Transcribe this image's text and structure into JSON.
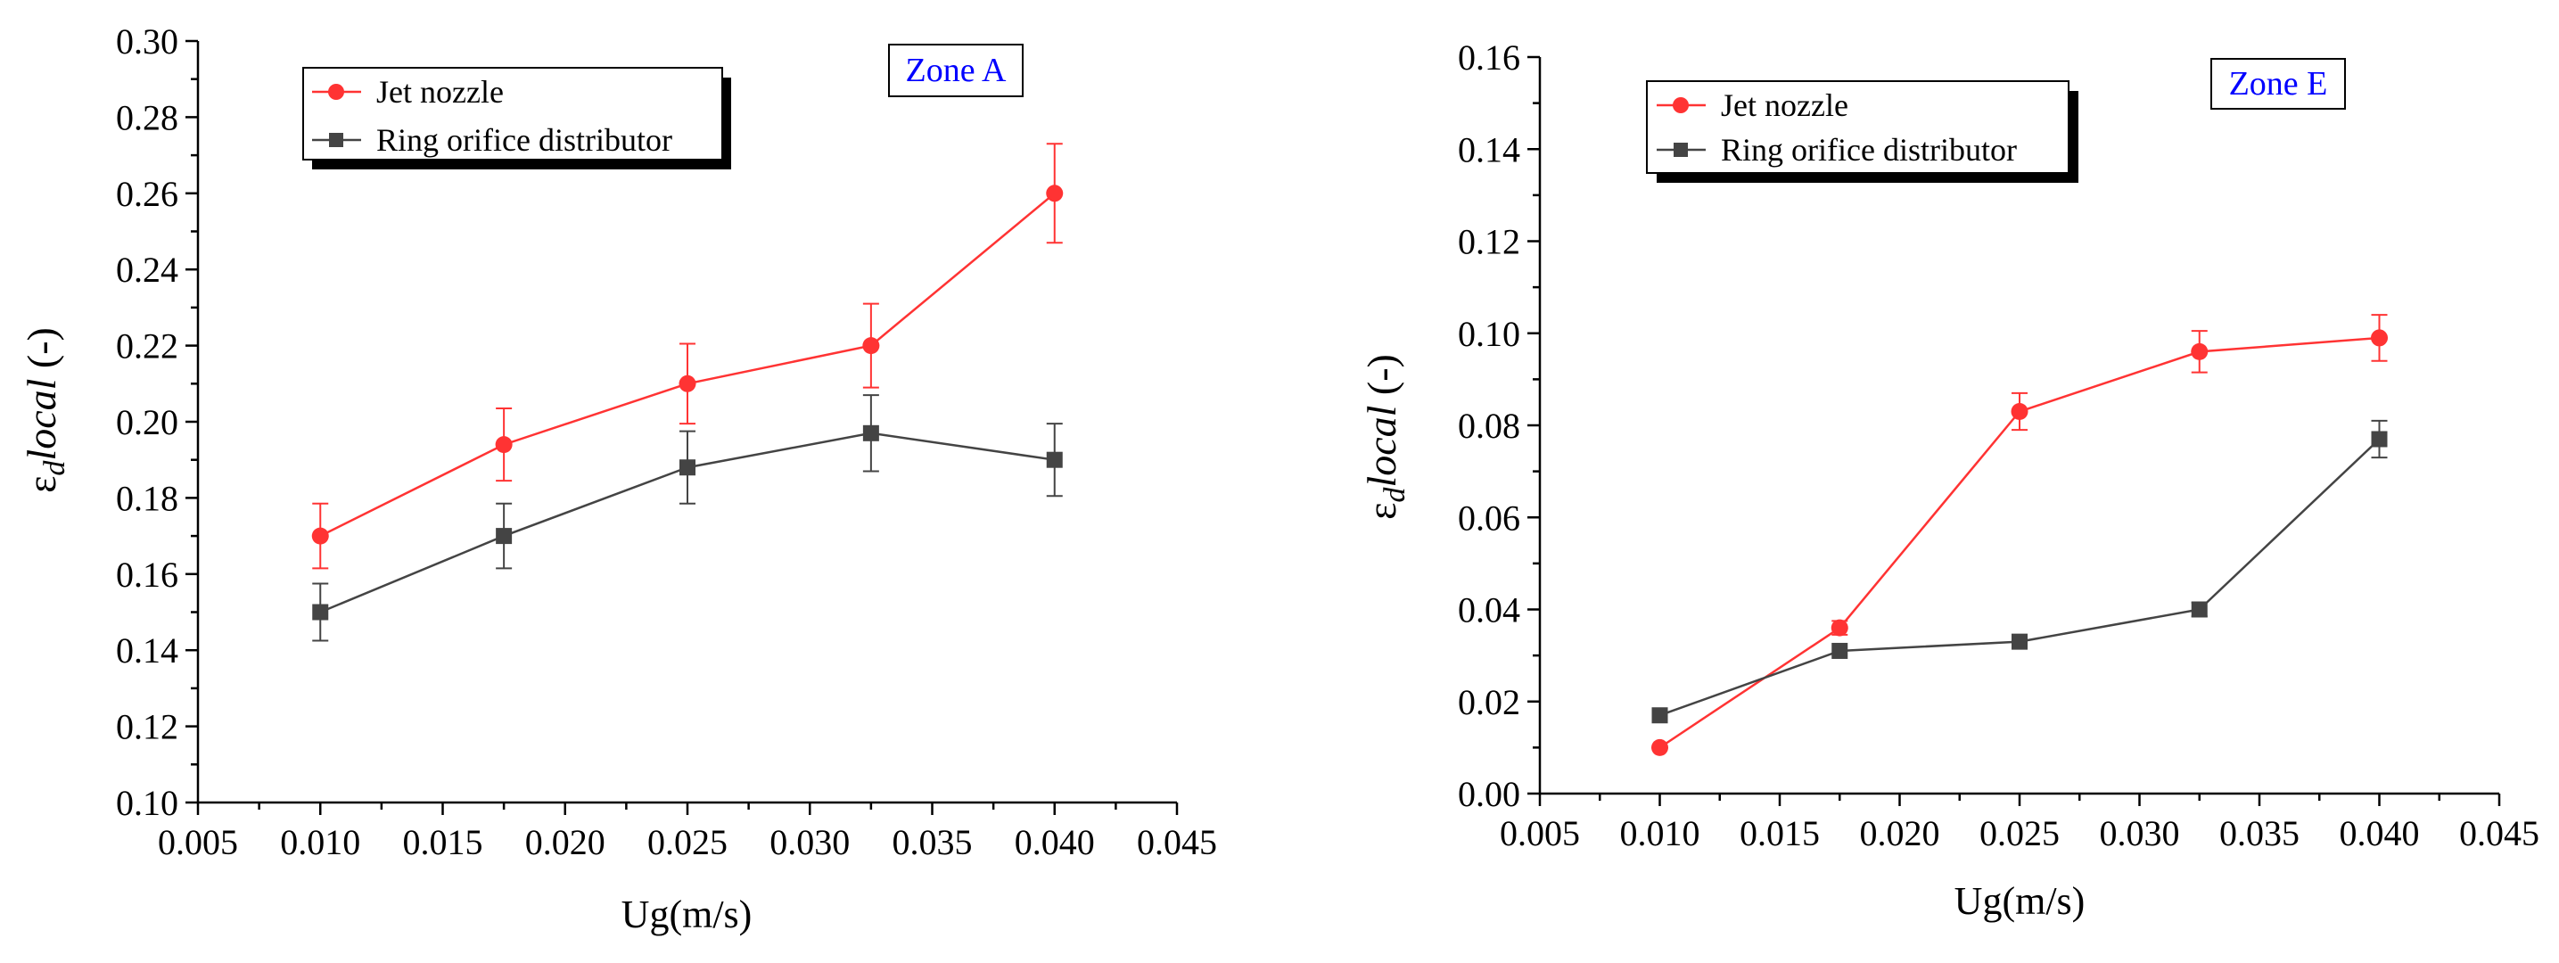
{
  "chart_data": [
    {
      "type": "line",
      "annotation": "Zone A",
      "xlabel": "Ug(m/s)",
      "ylabel": {
        "symbol": "ε",
        "subscript": "d",
        "rest": "local",
        "unit": " (-)"
      },
      "xlim": [
        0.005,
        0.045
      ],
      "ylim": [
        0.1,
        0.3
      ],
      "xticks": [
        "0.005",
        "0.010",
        "0.015",
        "0.020",
        "0.025",
        "0.030",
        "0.035",
        "0.040",
        "0.045"
      ],
      "yticks": [
        "0.10",
        "0.12",
        "0.14",
        "0.16",
        "0.18",
        "0.20",
        "0.22",
        "0.24",
        "0.26",
        "0.28",
        "0.30"
      ],
      "legend_position": "top-left",
      "series": [
        {
          "name": "Jet nozzle",
          "color": "#ff3333",
          "marker": "circle",
          "x": [
            0.01,
            0.0175,
            0.025,
            0.0325,
            0.04
          ],
          "y": [
            0.17,
            0.194,
            0.21,
            0.22,
            0.26
          ],
          "err": [
            0.0085,
            0.0095,
            0.0105,
            0.011,
            0.013
          ]
        },
        {
          "name": "Ring orifice distributor",
          "color": "#444444",
          "marker": "square",
          "x": [
            0.01,
            0.0175,
            0.025,
            0.0325,
            0.04
          ],
          "y": [
            0.15,
            0.17,
            0.188,
            0.197,
            0.19
          ],
          "err": [
            0.0075,
            0.0085,
            0.0095,
            0.01,
            0.0095
          ]
        }
      ]
    },
    {
      "type": "line",
      "annotation": "Zone E",
      "xlabel": "Ug(m/s)",
      "ylabel": {
        "symbol": "ε",
        "subscript": "d",
        "rest": "local",
        "unit": " (-)"
      },
      "xlim": [
        0.005,
        0.045
      ],
      "ylim": [
        0.0,
        0.16
      ],
      "xticks": [
        "0.005",
        "0.010",
        "0.015",
        "0.020",
        "0.025",
        "0.030",
        "0.035",
        "0.040",
        "0.045"
      ],
      "yticks": [
        "0.00",
        "0.02",
        "0.04",
        "0.06",
        "0.08",
        "0.10",
        "0.12",
        "0.14",
        "0.16"
      ],
      "legend_position": "top-left",
      "series": [
        {
          "name": "Jet nozzle",
          "color": "#ff3333",
          "marker": "circle",
          "x": [
            0.01,
            0.0175,
            0.025,
            0.0325,
            0.04
          ],
          "y": [
            0.01,
            0.036,
            0.083,
            0.096,
            0.099
          ],
          "err": [
            0.0,
            0.0015,
            0.004,
            0.0045,
            0.005
          ]
        },
        {
          "name": "Ring orifice distributor",
          "color": "#444444",
          "marker": "square",
          "x": [
            0.01,
            0.0175,
            0.025,
            0.0325,
            0.04
          ],
          "y": [
            0.017,
            0.031,
            0.033,
            0.04,
            0.077
          ],
          "err": [
            0.0,
            0.0,
            0.0,
            0.0015,
            0.004
          ]
        }
      ]
    }
  ]
}
